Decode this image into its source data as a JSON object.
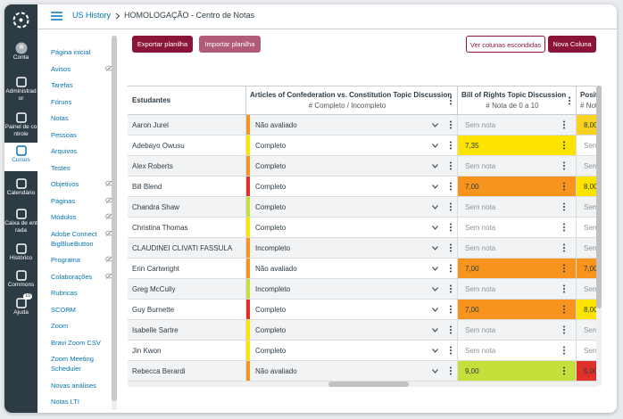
{
  "header": {
    "breadcrumb": [
      "US History",
      "HOMOLOGAÇÃO - Centro de Notas"
    ]
  },
  "global_nav": [
    {
      "label": "Conta"
    },
    {
      "label": "Administrador"
    },
    {
      "label": "Painel de controle"
    },
    {
      "label": "Cursos",
      "active": true
    },
    {
      "label": "Calendário"
    },
    {
      "label": "Caixa de entrada"
    },
    {
      "label": "Histórico"
    },
    {
      "label": "Commons"
    },
    {
      "label": "Ajuda",
      "badge": "10"
    }
  ],
  "course_nav": [
    {
      "label": "Página inicial"
    },
    {
      "label": "Avisos",
      "hidden": true
    },
    {
      "label": "Tarefas"
    },
    {
      "label": "Fóruns"
    },
    {
      "label": "Notas"
    },
    {
      "label": "Pessoas"
    },
    {
      "label": "Arquivos"
    },
    {
      "label": "Testes"
    },
    {
      "label": "Objetivos",
      "hidden": true
    },
    {
      "label": "Páginas",
      "hidden": true
    },
    {
      "label": "Módulos",
      "hidden": true
    },
    {
      "label": "Adobe Connect BigBlueButton",
      "hidden": true
    },
    {
      "label": "Programa",
      "hidden": true
    },
    {
      "label": "Colaborações",
      "hidden": true
    },
    {
      "label": "Rubricas"
    },
    {
      "label": "SCORM"
    },
    {
      "label": "Zoom"
    },
    {
      "label": "Bravi Zoom CSV"
    },
    {
      "label": "Zoom Meeting Scheduler"
    },
    {
      "label": "Novas análises"
    },
    {
      "label": "Notas LTI"
    }
  ],
  "toolbar": {
    "left": [
      "Exportar planilha",
      "Importar planilha"
    ],
    "right": [
      "Ver colunas escondidas",
      "Nova Coluna"
    ]
  },
  "gradebook": {
    "columns": [
      {
        "title": "Estudantes"
      },
      {
        "title": "Articles of Confederation vs. Constitution Topic Discussion",
        "subtitle": "# Completo / Incompleto"
      },
      {
        "title": "Bill of Rights Topic Discussion",
        "subtitle": "# Nota de 0 a 10"
      },
      {
        "title": "Posit",
        "subtitle": "# Not"
      }
    ],
    "rows": [
      {
        "student": "Aaron Jurel",
        "cells": [
          {
            "text": "Não avaliado",
            "color": "#f7941d"
          },
          {
            "text": "Sem nota"
          },
          {
            "text": "8,00",
            "color": "#f8d21c"
          }
        ]
      },
      {
        "student": "Adebayo Owusu",
        "cells": [
          {
            "text": "Completo",
            "color": "#fde400"
          },
          {
            "text": "7,35",
            "color": "#fde400"
          },
          {
            "text": "Sem"
          }
        ]
      },
      {
        "student": "Alex Roberts",
        "cells": [
          {
            "text": "Completo",
            "color": "#f7941d"
          },
          {
            "text": "Sem nota"
          },
          {
            "text": "Sem"
          }
        ]
      },
      {
        "student": "Bill Blend",
        "cells": [
          {
            "text": "Completo",
            "color": "#e0302a"
          },
          {
            "text": "7,00",
            "color": "#f7941d"
          },
          {
            "text": "8,00",
            "color": "#fde400"
          }
        ]
      },
      {
        "student": "Chandra Shaw",
        "cells": [
          {
            "text": "Completo",
            "color": "#c5e03a"
          },
          {
            "text": "Sem nota"
          },
          {
            "text": "Sem"
          }
        ]
      },
      {
        "student": "Christina Thomas",
        "cells": [
          {
            "text": "Completo",
            "color": "#fde400"
          },
          {
            "text": "Sem nota"
          },
          {
            "text": "Sem"
          }
        ]
      },
      {
        "student": "CLAUDINEI CLIVATI FASSULA",
        "cells": [
          {
            "text": "Incompleto",
            "color": "#f7941d"
          },
          {
            "text": "Sem nota"
          },
          {
            "text": "Sem"
          }
        ]
      },
      {
        "student": "Erin Cartwright",
        "cells": [
          {
            "text": "Não avaliado",
            "color": "#f7941d"
          },
          {
            "text": "7,00",
            "color": "#f7941d"
          },
          {
            "text": "7,00",
            "color": "#f7941d"
          }
        ]
      },
      {
        "student": "Greg McCully",
        "cells": [
          {
            "text": "Incompleto",
            "color": "#c5e03a"
          },
          {
            "text": "Sem nota"
          },
          {
            "text": "Sem"
          }
        ]
      },
      {
        "student": "Guy Burnette",
        "cells": [
          {
            "text": "Completo",
            "color": "#e0302a"
          },
          {
            "text": "7,00",
            "color": "#f7941d"
          },
          {
            "text": "8,00",
            "color": "#fde400"
          }
        ]
      },
      {
        "student": "Isabelle Sartre",
        "cells": [
          {
            "text": "Completo",
            "color": "#fde400"
          },
          {
            "text": "Sem nota"
          },
          {
            "text": "Sem"
          }
        ]
      },
      {
        "student": "Jin Kwon",
        "cells": [
          {
            "text": "Completo",
            "color": "#fde400"
          },
          {
            "text": "Sem nota"
          },
          {
            "text": "Sem"
          }
        ]
      },
      {
        "student": "Rebecca Berardi",
        "cells": [
          {
            "text": "Não avaliado",
            "color": "#f7941d"
          },
          {
            "text": "9,00",
            "color": "#c5e03a"
          },
          {
            "text": "5,00",
            "color": "#e0302a"
          }
        ]
      }
    ]
  }
}
